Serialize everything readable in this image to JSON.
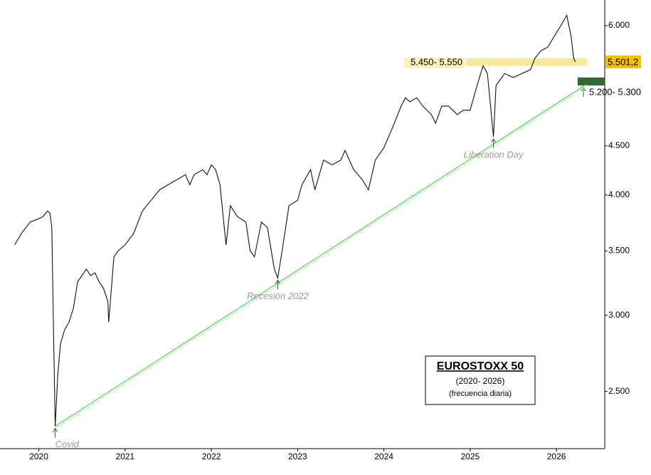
{
  "chart_data": {
    "type": "line",
    "title": "EUROSTOXX 50",
    "subtitle": "(2020- 2026)",
    "note": "(frecuencia diaria)",
    "log_scale": true,
    "xlim": [
      2019.55,
      2026.56
    ],
    "xticks": [
      2020,
      2021,
      2022,
      2023,
      2024,
      2025,
      2026
    ],
    "ylim": [
      2180,
      6380
    ],
    "yticks": [
      {
        "value": 2500,
        "label": "2.500"
      },
      {
        "value": 3000,
        "label": "3.000"
      },
      {
        "value": 3500,
        "label": "3.500"
      },
      {
        "value": 4000,
        "label": "4.000"
      },
      {
        "value": 4500,
        "label": "4.500"
      },
      {
        "value": 6000,
        "label": "6.000"
      }
    ],
    "series": [
      {
        "color": "#111111",
        "x": [
          2019.72,
          2019.8,
          2019.9,
          2020.0,
          2020.05,
          2020.1,
          2020.13,
          2020.15,
          2020.17,
          2020.19,
          2020.22,
          2020.25,
          2020.3,
          2020.35,
          2020.4,
          2020.45,
          2020.5,
          2020.55,
          2020.6,
          2020.65,
          2020.7,
          2020.75,
          2020.8,
          2020.81,
          2020.87,
          2020.92,
          2021.0,
          2021.1,
          2021.2,
          2021.3,
          2021.4,
          2021.5,
          2021.6,
          2021.7,
          2021.75,
          2021.8,
          2021.9,
          2021.95,
          2022.0,
          2022.05,
          2022.1,
          2022.17,
          2022.22,
          2022.3,
          2022.4,
          2022.45,
          2022.5,
          2022.58,
          2022.65,
          2022.73,
          2022.77,
          2022.82,
          2022.9,
          2023.0,
          2023.05,
          2023.15,
          2023.2,
          2023.3,
          2023.4,
          2023.5,
          2023.55,
          2023.65,
          2023.75,
          2023.82,
          2023.9,
          2024.0,
          2024.1,
          2024.2,
          2024.25,
          2024.3,
          2024.38,
          2024.45,
          2024.55,
          2024.6,
          2024.67,
          2024.75,
          2024.85,
          2024.92,
          2025.0,
          2025.08,
          2025.15,
          2025.2,
          2025.27,
          2025.3,
          2025.4,
          2025.5,
          2025.6,
          2025.7,
          2025.75,
          2025.82,
          2025.9,
          2025.95,
          2026.05,
          2026.12,
          2026.17,
          2026.2,
          2026.22
        ],
        "values": [
          3550,
          3650,
          3750,
          3780,
          3800,
          3850,
          3830,
          3700,
          2900,
          2300,
          2600,
          2800,
          2900,
          2950,
          3050,
          3250,
          3300,
          3350,
          3300,
          3320,
          3250,
          3200,
          3100,
          2950,
          3450,
          3500,
          3550,
          3650,
          3850,
          3950,
          4050,
          4100,
          4150,
          4200,
          4100,
          4200,
          4250,
          4200,
          4300,
          4250,
          4100,
          3550,
          3900,
          3800,
          3750,
          3500,
          3450,
          3750,
          3700,
          3350,
          3280,
          3500,
          3900,
          3950,
          4100,
          4250,
          4050,
          4350,
          4300,
          4350,
          4450,
          4250,
          4150,
          4050,
          4350,
          4480,
          4700,
          4950,
          5050,
          5000,
          5050,
          4950,
          4850,
          4750,
          4950,
          4950,
          4850,
          4900,
          4900,
          5200,
          5450,
          5350,
          4600,
          5200,
          5350,
          5300,
          5350,
          5400,
          5550,
          5650,
          5700,
          5800,
          6000,
          6150,
          5850,
          5550,
          5501.2
        ]
      }
    ],
    "trendline": {
      "color": "#5cc85c",
      "x": [
        2020.19,
        2026.35
      ],
      "values": [
        2300,
        5216
      ]
    },
    "last_value": {
      "value": 5501.2,
      "value_label": "5.501,2"
    },
    "zones": [
      {
        "label": "5.450- 5.550",
        "low": 5450,
        "high": 5550,
        "color": "#f3e27a"
      },
      {
        "label": "5.200- 5.300",
        "low": 5200,
        "high": 5300,
        "color": "#2e6b2e"
      }
    ],
    "annotations": [
      {
        "text": "Covid",
        "x": 2020.19,
        "value": 2300
      },
      {
        "text": "Recesión 2022",
        "x": 2022.77,
        "value": 3280
      },
      {
        "text": "Liberation Day",
        "x": 2025.27,
        "value": 4600
      }
    ]
  }
}
